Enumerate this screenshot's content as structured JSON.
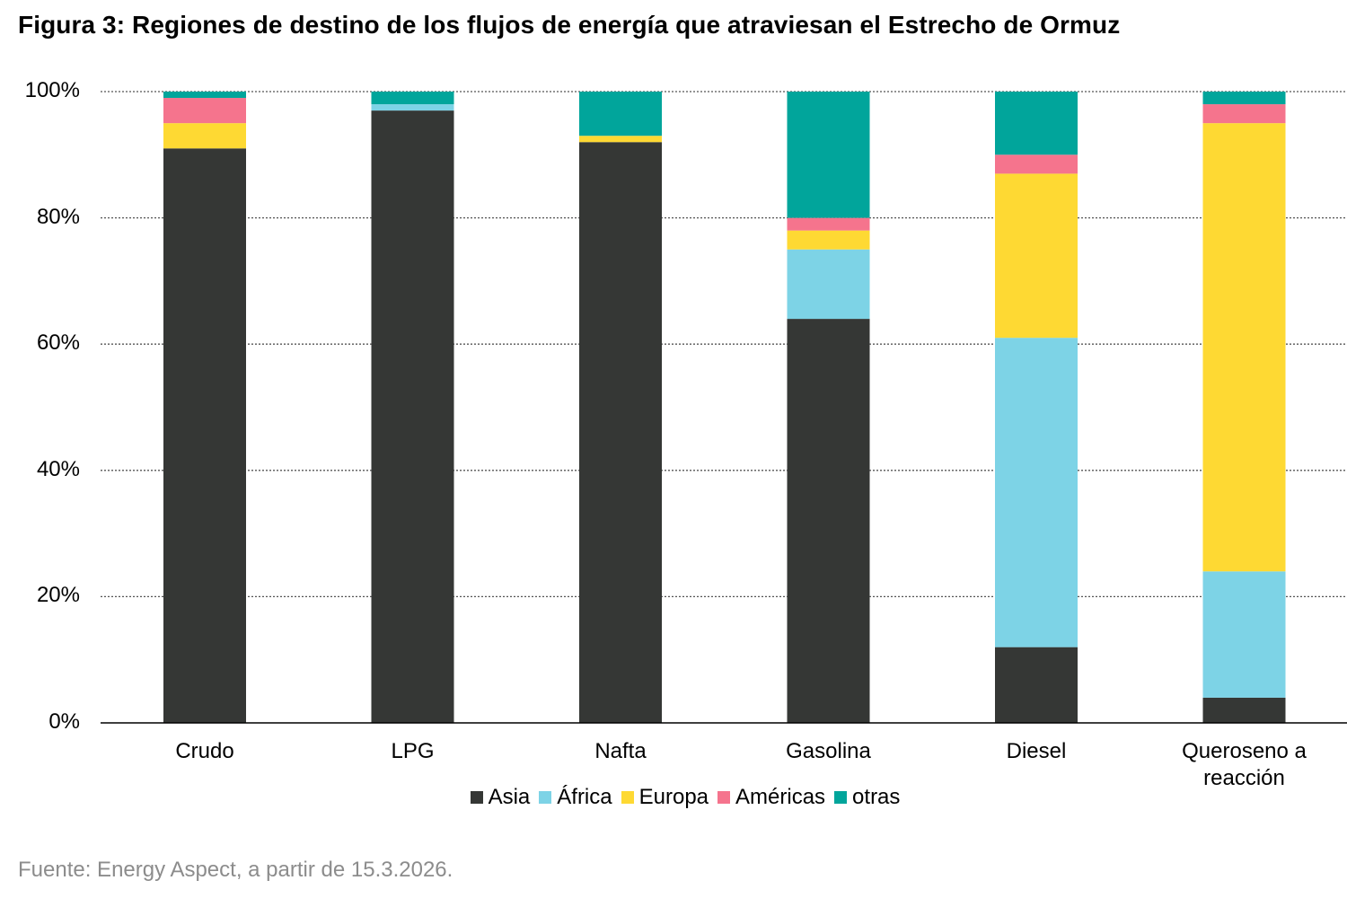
{
  "chart_data": {
    "type": "bar",
    "stacked": true,
    "title": "Figura 3: Regiones de destino de los flujos de energía que atraviesan el Estrecho de Ormuz",
    "categories": [
      "Crudo",
      "LPG",
      "Nafta",
      "Gasolina",
      "Diesel",
      "Queroseno a reacción"
    ],
    "series": [
      {
        "name": "Asia",
        "color": "#353735",
        "values": [
          91,
          97,
          92,
          64,
          12,
          4
        ]
      },
      {
        "name": "África",
        "color": "#7dd3e6",
        "values": [
          0,
          1,
          0,
          11,
          49,
          20
        ]
      },
      {
        "name": "Europa",
        "color": "#fed933",
        "values": [
          4,
          0,
          1,
          3,
          26,
          71
        ]
      },
      {
        "name": "Américas",
        "color": "#f5748d",
        "values": [
          4,
          0,
          0,
          2,
          3,
          3
        ]
      },
      {
        "name": "otras",
        "color": "#01a59b",
        "values": [
          1,
          2,
          7,
          20,
          10,
          2
        ]
      }
    ],
    "ylim": [
      0,
      100
    ],
    "yticks": [
      "0%",
      "20%",
      "40%",
      "60%",
      "80%",
      "100%"
    ],
    "grid": true,
    "legend": "bottom-center",
    "xlabel": "",
    "ylabel": ""
  },
  "source": "Fuente: Energy Aspect, a partir de 15.3.2026."
}
